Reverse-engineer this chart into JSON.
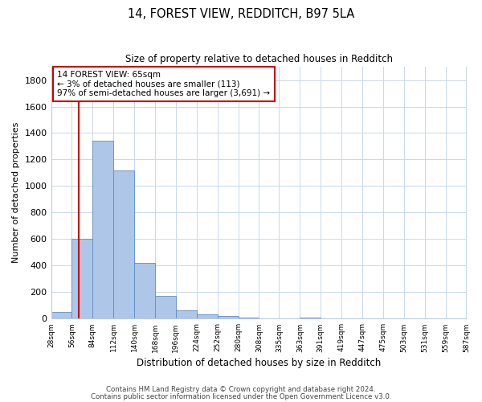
{
  "title_line1": "14, FOREST VIEW, REDDITCH, B97 5LA",
  "title_line2": "Size of property relative to detached houses in Redditch",
  "xlabel": "Distribution of detached houses by size in Redditch",
  "ylabel": "Number of detached properties",
  "annotation_line1": "14 FOREST VIEW: 65sqm",
  "annotation_line2": "← 3% of detached houses are smaller (113)",
  "annotation_line3": "97% of semi-detached houses are larger (3,691) →",
  "footnote_line1": "Contains HM Land Registry data © Crown copyright and database right 2024.",
  "footnote_line2": "Contains public sector information licensed under the Open Government Licence v3.0.",
  "bar_color": "#aec6e8",
  "bar_edge_color": "#5b8ec4",
  "vline_color": "#cc0000",
  "annotation_box_edge_color": "#cc0000",
  "annotation_box_face_color": "#ffffff",
  "background_color": "#ffffff",
  "grid_color": "#c8d8e8",
  "bin_edges": [
    28,
    56,
    84,
    112,
    140,
    168,
    196,
    224,
    252,
    280,
    308,
    335,
    363,
    391,
    419,
    447,
    475,
    503,
    531,
    559,
    587
  ],
  "bin_labels": [
    "28sqm",
    "56sqm",
    "84sqm",
    "112sqm",
    "140sqm",
    "168sqm",
    "196sqm",
    "224sqm",
    "252sqm",
    "280sqm",
    "308sqm",
    "335sqm",
    "363sqm",
    "391sqm",
    "419sqm",
    "447sqm",
    "475sqm",
    "503sqm",
    "531sqm",
    "559sqm",
    "587sqm"
  ],
  "bar_heights": [
    50,
    600,
    1340,
    1120,
    420,
    170,
    60,
    30,
    20,
    5,
    0,
    0,
    5,
    0,
    0,
    0,
    0,
    0,
    0,
    0
  ],
  "vline_x": 65,
  "ylim": [
    0,
    1900
  ],
  "yticks": [
    0,
    200,
    400,
    600,
    800,
    1000,
    1200,
    1400,
    1600,
    1800
  ]
}
